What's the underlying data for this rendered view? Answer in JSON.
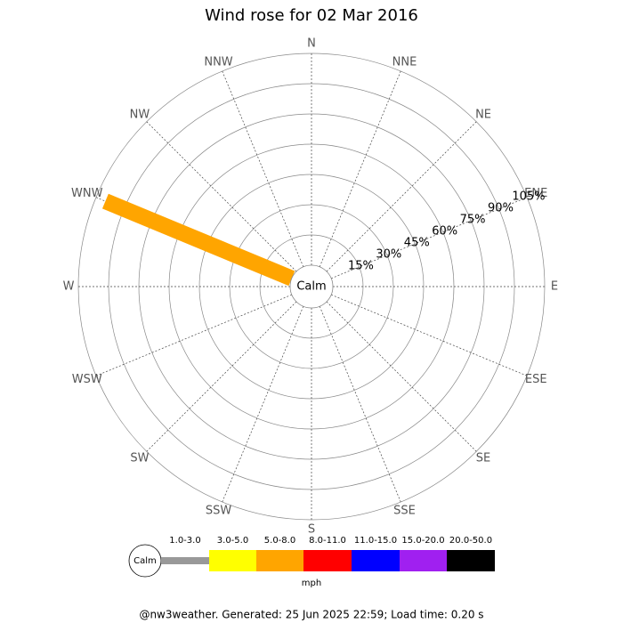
{
  "chart_data": {
    "type": "windrose",
    "title": "Wind rose for 02 Mar 2016",
    "calm_label": "Calm",
    "unit_label": "mph",
    "footer": "@nw3weather. Generated: 25 Jun 2025 22:59; Load time: 0.20 s",
    "directions": [
      "N",
      "NNE",
      "NE",
      "ENE",
      "E",
      "ESE",
      "SE",
      "SSE",
      "S",
      "SSW",
      "SW",
      "WSW",
      "W",
      "WNW",
      "NW",
      "NNW"
    ],
    "rlim": [
      0,
      105
    ],
    "rticks": [
      {
        "value": 15,
        "label": "15%"
      },
      {
        "value": 30,
        "label": "30%"
      },
      {
        "value": 45,
        "label": "45%"
      },
      {
        "value": 60,
        "label": "60%"
      },
      {
        "value": 75,
        "label": "75%"
      },
      {
        "value": 90,
        "label": "90%"
      },
      {
        "value": 105,
        "label": "105%"
      }
    ],
    "series": [
      {
        "name": "1.0-3.0",
        "color": "#999999",
        "values": [
          0,
          0,
          0,
          0,
          0,
          0,
          0,
          0,
          0,
          0,
          0,
          0,
          0,
          0,
          0,
          0
        ]
      },
      {
        "name": "3.0-5.0",
        "color": "#ffff00",
        "values": [
          0,
          0,
          0,
          0,
          0,
          0,
          0,
          0,
          0,
          0,
          0,
          0,
          0,
          0,
          0,
          0
        ]
      },
      {
        "name": "5.0-8.0",
        "color": "#ffa500",
        "values": [
          0,
          0,
          0,
          0,
          0,
          0,
          0,
          0,
          0,
          0,
          0,
          0,
          0,
          100,
          0,
          0
        ]
      },
      {
        "name": "8.0-11.0",
        "color": "#ff0000",
        "values": [
          0,
          0,
          0,
          0,
          0,
          0,
          0,
          0,
          0,
          0,
          0,
          0,
          0,
          0,
          0,
          0
        ]
      },
      {
        "name": "11.0-15.0",
        "color": "#0000ff",
        "values": [
          0,
          0,
          0,
          0,
          0,
          0,
          0,
          0,
          0,
          0,
          0,
          0,
          0,
          0,
          0,
          0
        ]
      },
      {
        "name": "15.0-20.0",
        "color": "#a020f0",
        "values": [
          0,
          0,
          0,
          0,
          0,
          0,
          0,
          0,
          0,
          0,
          0,
          0,
          0,
          0,
          0,
          0
        ]
      },
      {
        "name": "20.0-50.0",
        "color": "#000000",
        "values": [
          0,
          0,
          0,
          0,
          0,
          0,
          0,
          0,
          0,
          0,
          0,
          0,
          0,
          0,
          0,
          0
        ]
      }
    ]
  }
}
